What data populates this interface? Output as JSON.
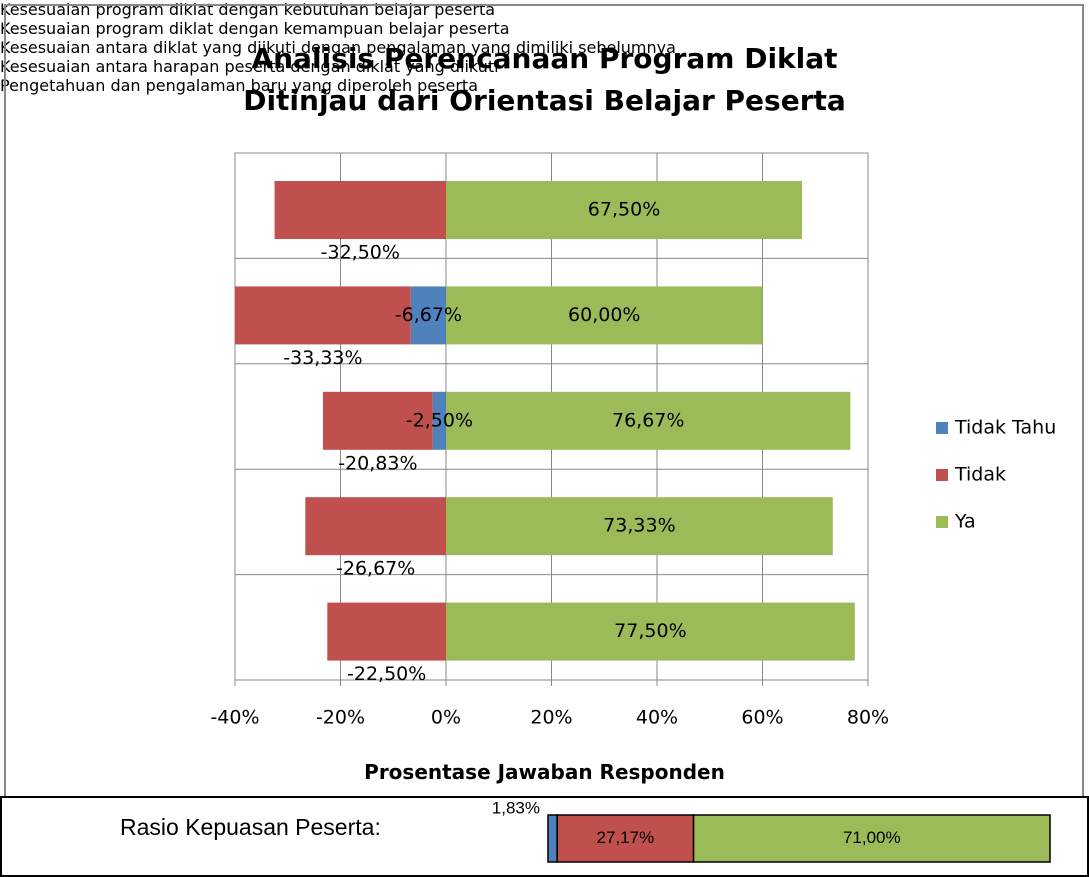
{
  "chart_data": [
    {
      "type": "bar",
      "orientation": "horizontal",
      "stacked": true,
      "title": "Analisis Perencanaan Program Diklat\nDitinjau dari Orientasi Belajar Peserta",
      "x_label": "Prosentase Jawaban Responden",
      "categories": [
        "Kesesuaian program diklat dengan\nkebutuhan belajar peserta",
        "Kesesuaian program diklat dengan\nkemampuan belajar peserta",
        "Kesesuaian antara diklat yang diikuti\ndengan pengalaman yang dimiliki\nsebelumnya",
        "Kesesuaian antara harapan peserta\ndengan diklat yang diikuti",
        "Pengetahuan dan pengalaman baru\nyang diperoleh peserta"
      ],
      "series": [
        {
          "name": "Tidak Tahu",
          "color": "#4f81bd",
          "values": [
            null,
            -6.67,
            -2.5,
            null,
            null
          ],
          "value_labels": [
            null,
            "-6,67%",
            "-2,50%",
            null,
            null
          ]
        },
        {
          "name": "Tidak",
          "color": "#c0504d",
          "values": [
            -32.5,
            -33.33,
            -20.83,
            -26.67,
            -22.5
          ],
          "value_labels": [
            "-32,50%",
            "-33,33%",
            "-20,83%",
            "-26,67%",
            "-22,50%"
          ]
        },
        {
          "name": "Ya",
          "color": "#9bbb59",
          "values": [
            67.5,
            60,
            76.67,
            73.33,
            77.5
          ],
          "value_labels": [
            "67,50%",
            "60,00%",
            "76,67%",
            "73,33%",
            "77,50%"
          ]
        }
      ],
      "xlim": [
        -40,
        80
      ],
      "xticks": [
        {
          "value": -40,
          "label": "-40%"
        },
        {
          "value": -20,
          "label": "-20%"
        },
        {
          "value": 0,
          "label": "0%"
        },
        {
          "value": 20,
          "label": "20%"
        },
        {
          "value": 40,
          "label": "40%"
        },
        {
          "value": 60,
          "label": "60%"
        },
        {
          "value": 80,
          "label": "80%"
        }
      ],
      "grid": true,
      "legend": "right"
    },
    {
      "type": "bar",
      "orientation": "horizontal",
      "stacked": true,
      "title": "Rasio Kepuasan Peserta:",
      "series": [
        {
          "color": "#4f81bd",
          "values": [
            1.83
          ],
          "value_labels": [
            "1,83%"
          ]
        },
        {
          "color": "#c0504d",
          "values": [
            27.17
          ],
          "value_labels": [
            "27,17%"
          ]
        },
        {
          "color": "#9bbb59",
          "values": [
            71.0
          ],
          "value_labels": [
            "71,00%"
          ]
        }
      ]
    }
  ]
}
